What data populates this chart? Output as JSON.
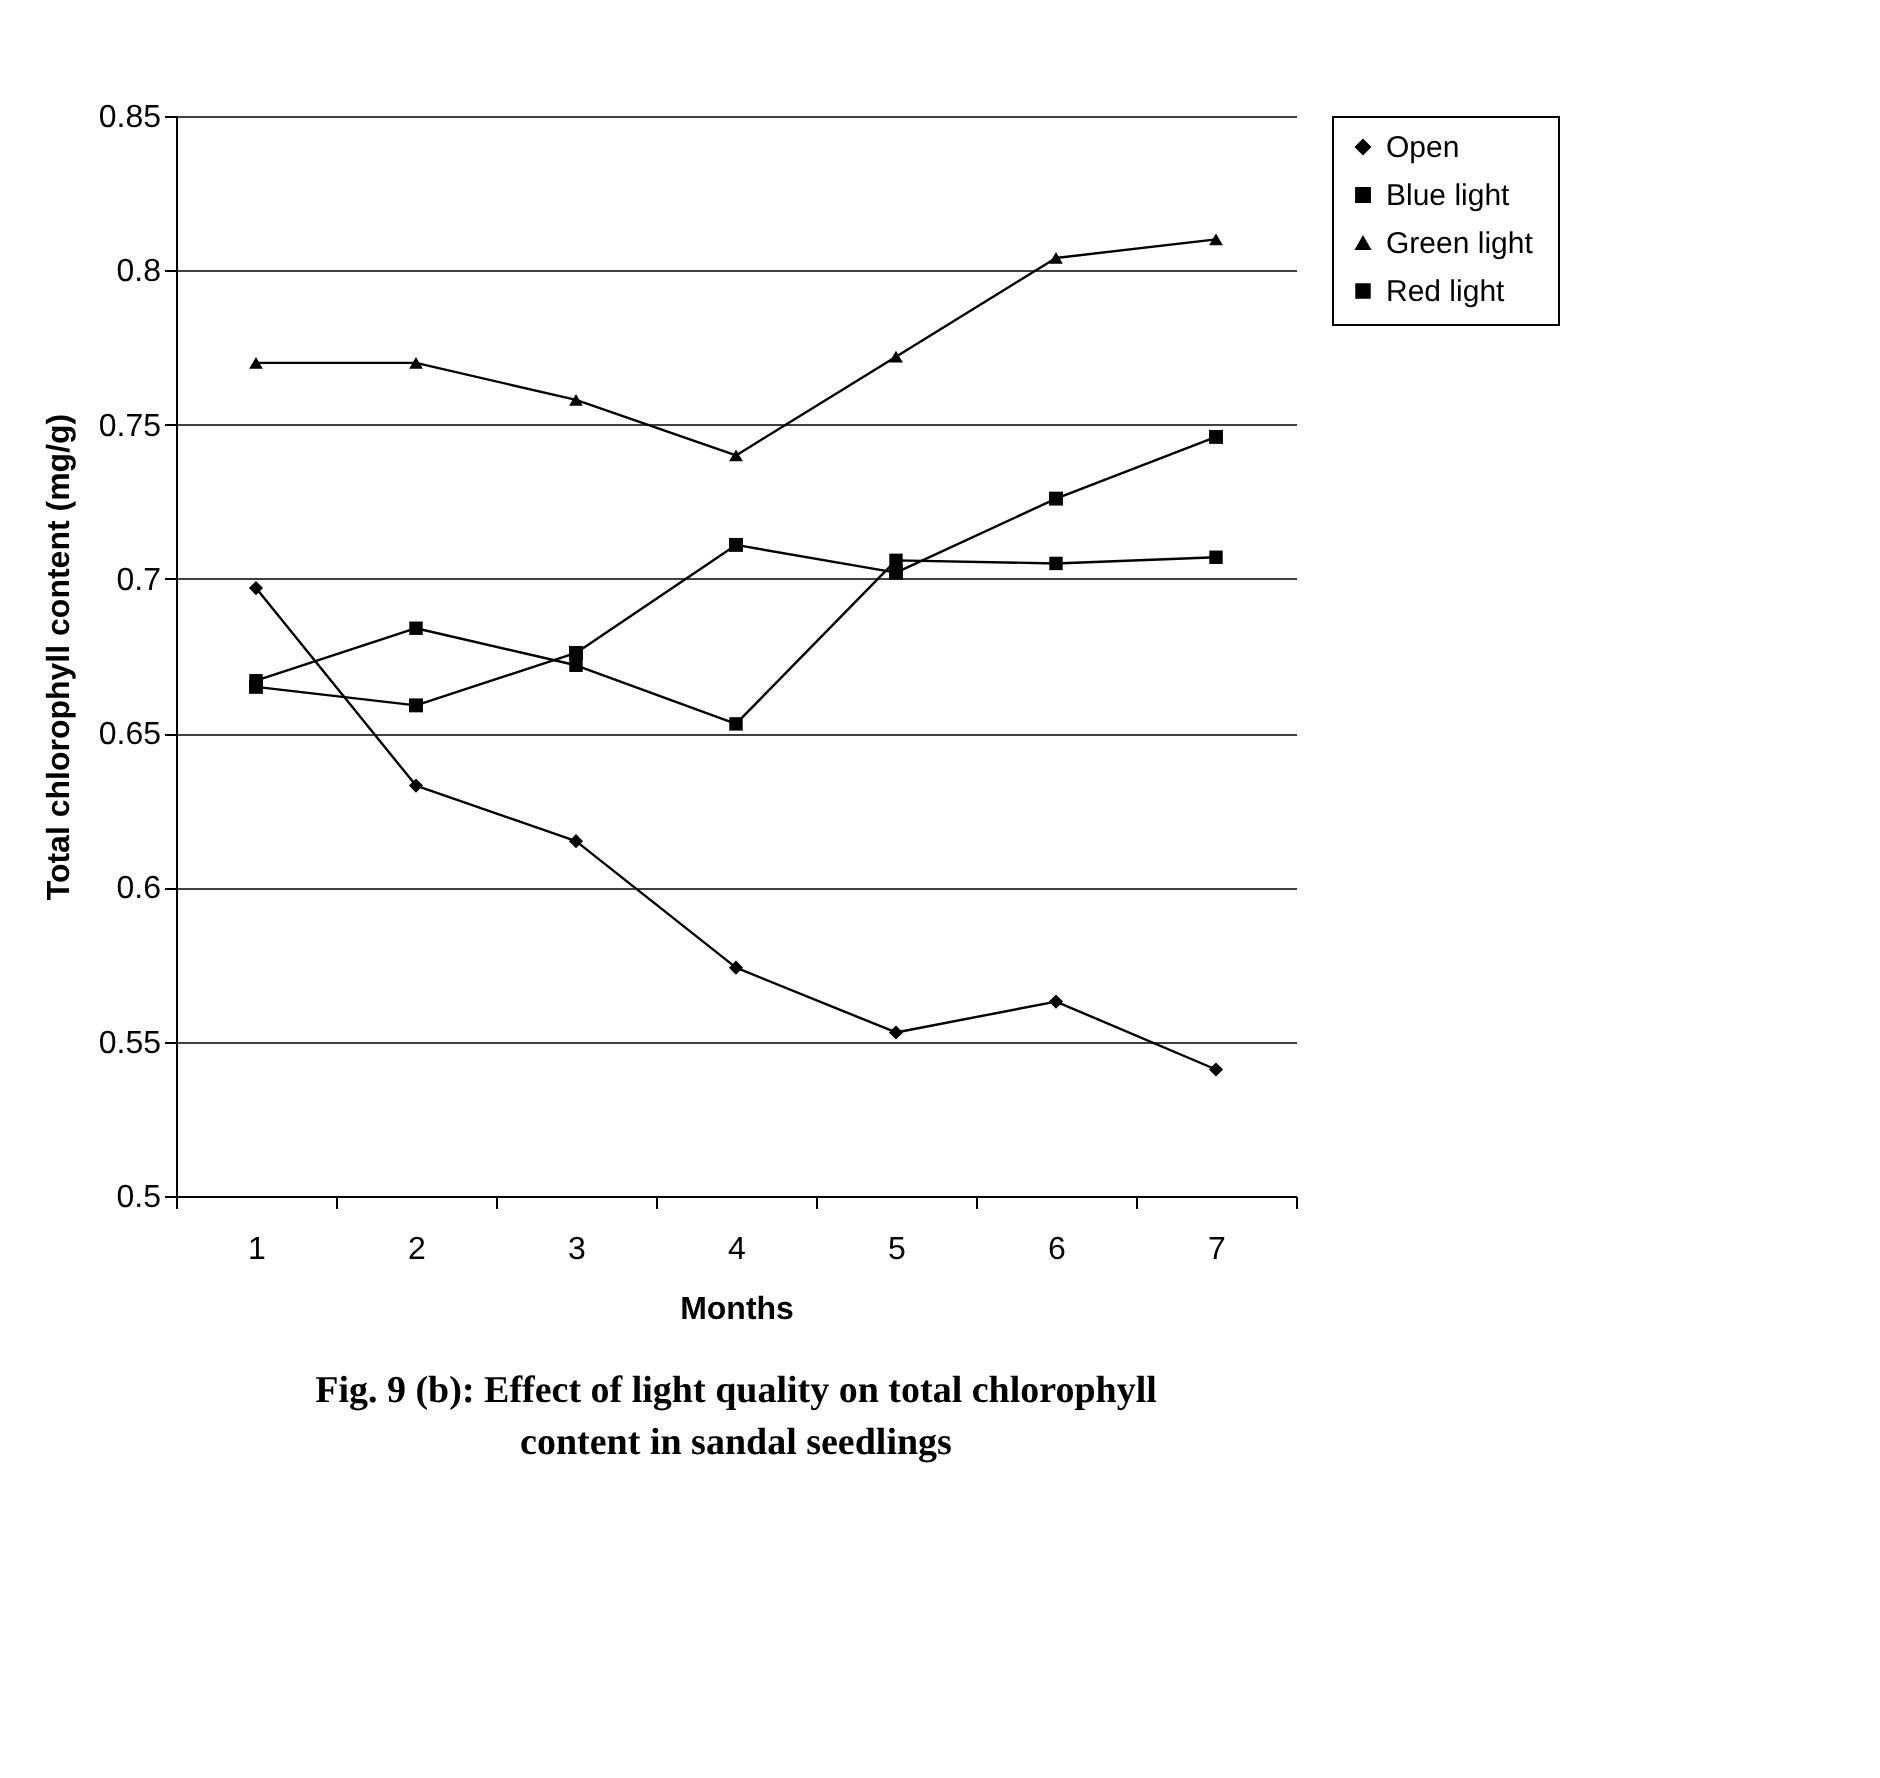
{
  "chart_data": {
    "type": "line",
    "title": "Fig. 9 (b):   Effect of light quality on total chlorophyll content in sandal seedlings",
    "xlabel": "Months",
    "ylabel": "Total chlorophyll content (mg/g)",
    "categories": [
      "1",
      "2",
      "3",
      "4",
      "5",
      "6",
      "7"
    ],
    "series": [
      {
        "name": "Open",
        "color": "#000000",
        "marker": "diamond",
        "values": [
          0.697,
          0.633,
          0.615,
          0.574,
          0.553,
          0.563,
          0.541
        ]
      },
      {
        "name": "Blue light",
        "color": "#000000",
        "marker": "square",
        "values": [
          0.665,
          0.659,
          0.676,
          0.711,
          0.702,
          0.726,
          0.746
        ]
      },
      {
        "name": "Green  light",
        "color": "#000000",
        "marker": "triangle",
        "values": [
          0.77,
          0.77,
          0.758,
          0.74,
          0.772,
          0.804,
          0.81
        ]
      },
      {
        "name": "Red  light",
        "color": "#000000",
        "marker": "square",
        "values": [
          0.667,
          0.684,
          0.672,
          0.653,
          0.706,
          0.705,
          0.707
        ]
      }
    ],
    "ylim": [
      0.5,
      0.85
    ],
    "yticks": [
      0.5,
      0.55,
      0.6,
      0.65,
      0.7,
      0.75,
      0.8,
      0.85
    ],
    "grid": "y",
    "legend": "right",
    "line_style": "solid"
  }
}
